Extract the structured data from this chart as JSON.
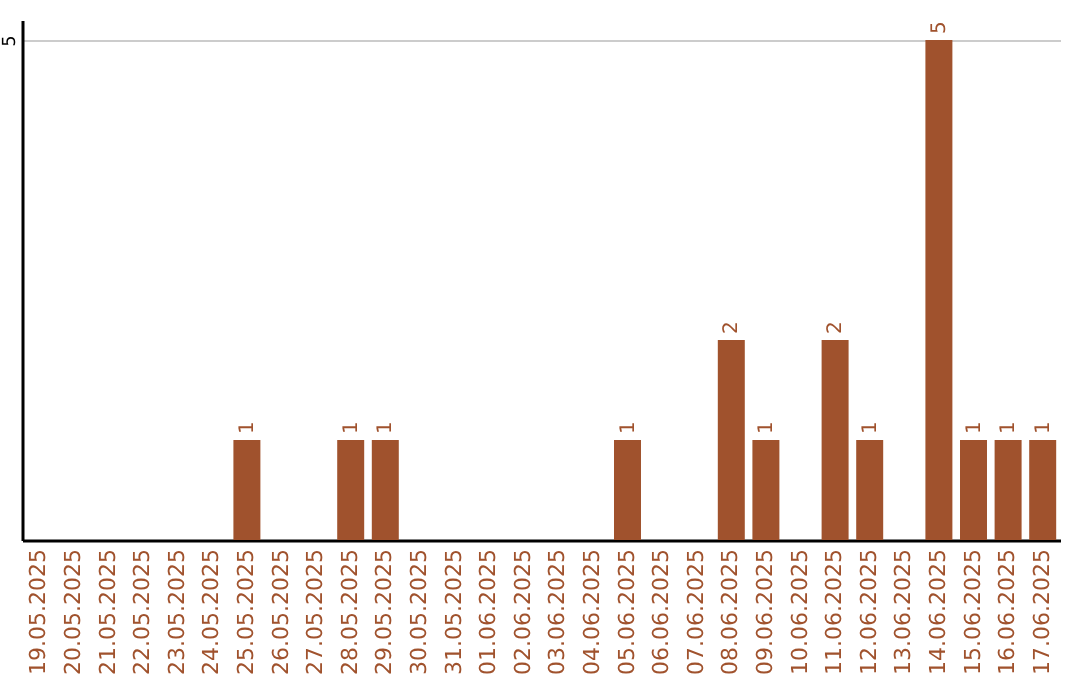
{
  "chart_data": {
    "type": "bar",
    "categories": [
      "19.05.2025",
      "20.05.2025",
      "21.05.2025",
      "22.05.2025",
      "23.05.2025",
      "24.05.2025",
      "25.05.2025",
      "26.05.2025",
      "27.05.2025",
      "28.05.2025",
      "29.05.2025",
      "30.05.2025",
      "31.05.2025",
      "01.06.2025",
      "02.06.2025",
      "03.06.2025",
      "04.06.2025",
      "05.06.2025",
      "06.06.2025",
      "07.06.2025",
      "08.06.2025",
      "09.06.2025",
      "10.06.2025",
      "11.06.2025",
      "12.06.2025",
      "13.06.2025",
      "14.06.2025",
      "15.06.2025",
      "16.06.2025",
      "17.06.2025"
    ],
    "values": [
      0,
      0,
      0,
      0,
      0,
      0,
      1,
      0,
      0,
      1,
      1,
      0,
      0,
      0,
      0,
      0,
      0,
      1,
      0,
      0,
      2,
      1,
      0,
      2,
      1,
      0,
      5,
      1,
      1,
      1
    ],
    "value_labels": [
      null,
      null,
      null,
      null,
      null,
      null,
      "1",
      null,
      null,
      "1",
      "1",
      null,
      null,
      null,
      null,
      null,
      null,
      "1",
      null,
      null,
      "2",
      "1",
      null,
      "2",
      "1",
      null,
      "5",
      "1",
      "1",
      "1"
    ],
    "color": "#a0522d",
    "ylim": [
      0,
      5.2
    ],
    "yticks": [
      5
    ],
    "grid": "y"
  }
}
